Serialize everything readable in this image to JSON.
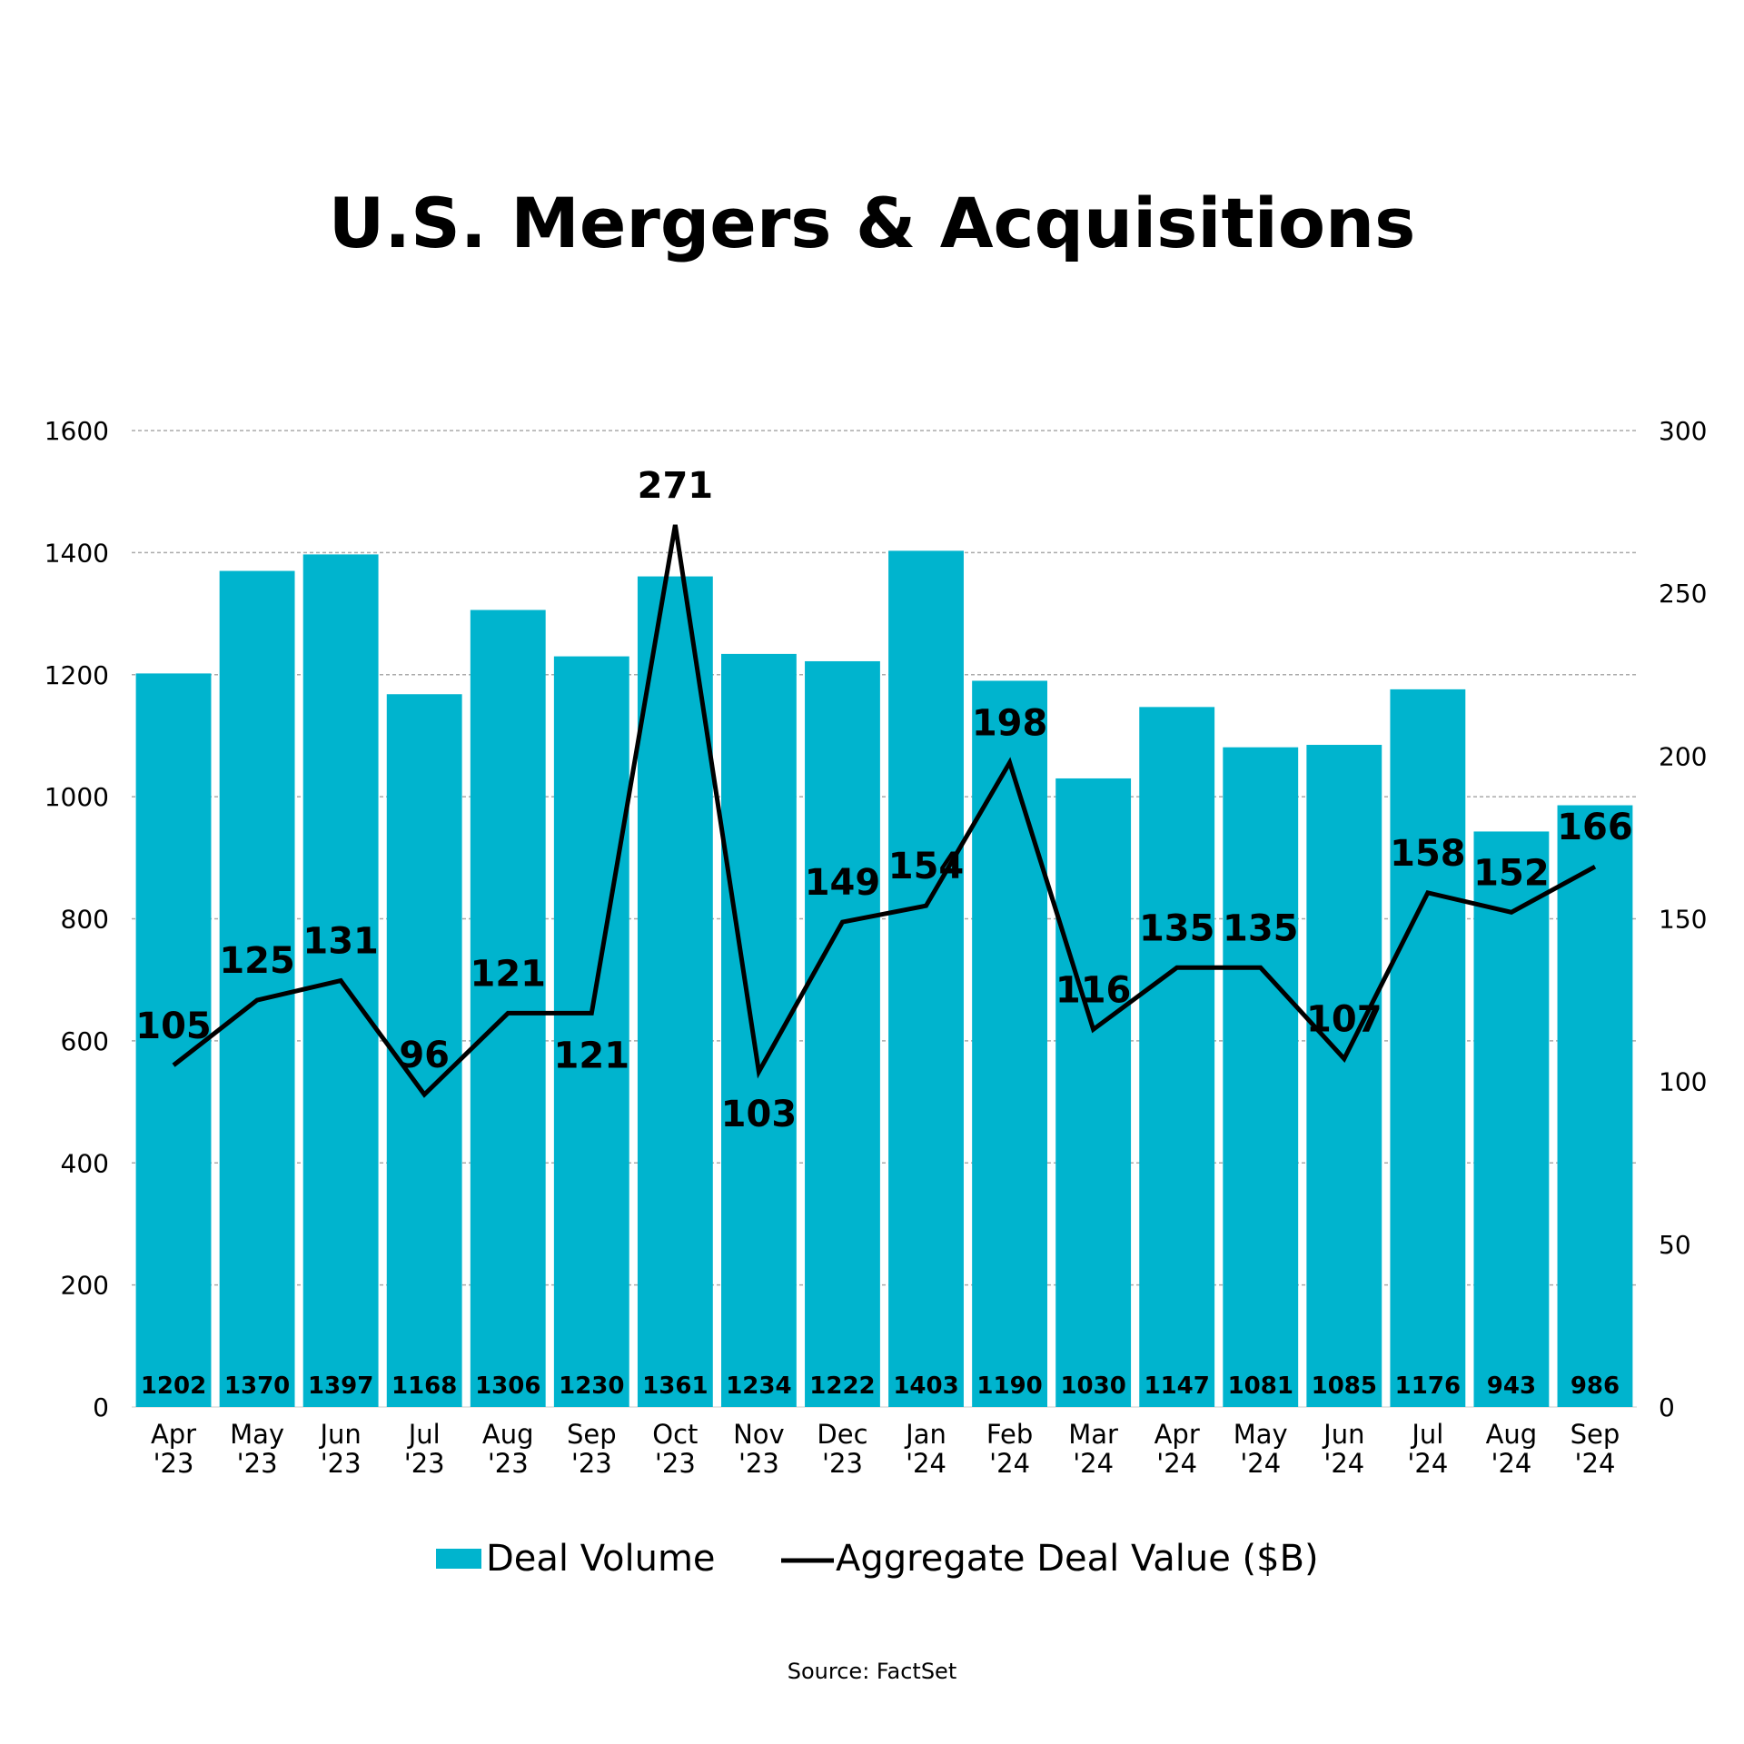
{
  "chart_data": {
    "type": "bar+line",
    "title": "U.S. Mergers & Acquisitions",
    "source": "Source: FactSet",
    "categories": [
      [
        "Apr",
        "'23"
      ],
      [
        "May",
        "'23"
      ],
      [
        "Jun",
        "'23"
      ],
      [
        "Jul",
        "'23"
      ],
      [
        "Aug",
        "'23"
      ],
      [
        "Sep",
        "'23"
      ],
      [
        "Oct",
        "'23"
      ],
      [
        "Nov",
        "'23"
      ],
      [
        "Dec",
        "'23"
      ],
      [
        "Jan",
        "'24"
      ],
      [
        "Feb",
        "'24"
      ],
      [
        "Mar",
        "'24"
      ],
      [
        "Apr",
        "'24"
      ],
      [
        "May",
        "'24"
      ],
      [
        "Jun",
        "'24"
      ],
      [
        "Jul",
        "'24"
      ],
      [
        "Aug",
        "'24"
      ],
      [
        "Sep",
        "'24"
      ]
    ],
    "series": [
      {
        "name": "Deal Volume",
        "type": "bar",
        "axis": "left",
        "color": "#00B4CE",
        "values": [
          1202,
          1370,
          1397,
          1168,
          1306,
          1230,
          1361,
          1234,
          1222,
          1403,
          1190,
          1030,
          1147,
          1081,
          1085,
          1176,
          943,
          986
        ]
      },
      {
        "name": "Aggregate Deal Value ($B)",
        "type": "line",
        "axis": "right",
        "color": "#000000",
        "values": [
          105,
          125,
          131,
          96,
          121,
          121,
          271,
          103,
          149,
          154,
          198,
          116,
          135,
          135,
          107,
          158,
          152,
          166
        ]
      }
    ],
    "left_axis": {
      "range": [
        0,
        1600
      ],
      "ticks": [
        0,
        200,
        400,
        600,
        800,
        1000,
        1200,
        1400,
        1600
      ]
    },
    "right_axis": {
      "range": [
        0,
        300
      ],
      "ticks": [
        0,
        50,
        100,
        150,
        200,
        250,
        300
      ]
    },
    "grid": true,
    "legend": "bottom"
  }
}
